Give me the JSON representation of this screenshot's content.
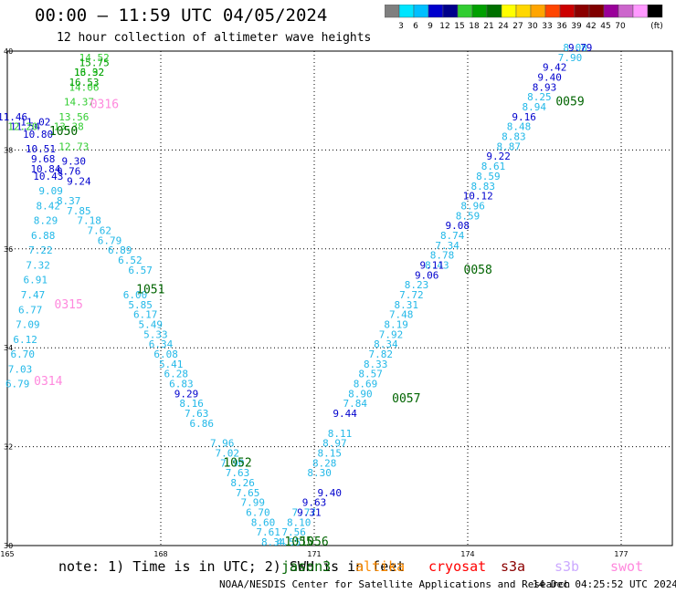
{
  "title": "00:00 – 11:59 UTC 04/05/2024",
  "subtitle": "12 hour collection of altimeter wave heights",
  "note": "note: 1) Time is in UTC; 2) SWH is in feet",
  "credit": "NOAA/NESDIS Center for Satellite Applications and Research",
  "timestamp": "14 Dec 04:25:52 UTC 2024",
  "colorbar": {
    "unit": "(ft)",
    "ticks": [
      "3",
      "6",
      "9",
      "12",
      "15",
      "18",
      "21",
      "24",
      "27",
      "30",
      "33",
      "36",
      "39",
      "42",
      "45",
      "70"
    ],
    "colors": [
      "#7f7f7f",
      "#00e5ff",
      "#00bfff",
      "#0000cd",
      "#00008b",
      "#32cd32",
      "#00a000",
      "#007000",
      "#ffff00",
      "#ffd700",
      "#ffa500",
      "#ff4500",
      "#cc0000",
      "#8b0000",
      "#800000",
      "#990099",
      "#cc66cc",
      "#ff99ff",
      "#000000"
    ]
  },
  "satellites": [
    {
      "name": "jason3",
      "color": "#006400"
    },
    {
      "name": "altika",
      "color": "#ff8c00"
    },
    {
      "name": "cryosat",
      "color": "#ff0000"
    },
    {
      "name": "s3a",
      "color": "#8b0000"
    },
    {
      "name": "s3b",
      "color": "#ccaaff"
    },
    {
      "name": "swot",
      "color": "#ff88dd"
    }
  ],
  "chart_data": {
    "type": "scatter",
    "xlim": [
      165,
      178
    ],
    "ylim": [
      30,
      40
    ],
    "xticks": [
      "165",
      "168",
      "171",
      "174",
      "177"
    ],
    "yticks": [
      "40",
      "38",
      "36",
      "34",
      "32",
      "30"
    ],
    "grid": true,
    "track_labels": [
      {
        "text": "0314",
        "lon": 165.8,
        "lat": 33.25,
        "color": "#ff88dd"
      },
      {
        "text": "0315",
        "lon": 166.2,
        "lat": 34.8,
        "color": "#ff88dd"
      },
      {
        "text": "0316",
        "lon": 166.9,
        "lat": 38.85,
        "color": "#ff88dd"
      },
      {
        "text": "1050",
        "lon": 166.1,
        "lat": 38.3,
        "color": "#006400"
      },
      {
        "text": "1051",
        "lon": 167.8,
        "lat": 35.1,
        "color": "#006400"
      },
      {
        "text": "1052",
        "lon": 169.5,
        "lat": 31.6,
        "color": "#006400"
      },
      {
        "text": "1055",
        "lon": 170.7,
        "lat": 30.0,
        "color": "#006400"
      },
      {
        "text": "1056",
        "lon": 171.0,
        "lat": 30.0,
        "color": "#006400"
      },
      {
        "text": "0057",
        "lon": 172.8,
        "lat": 32.9,
        "color": "#006400"
      },
      {
        "text": "0058",
        "lon": 174.2,
        "lat": 35.5,
        "color": "#006400"
      },
      {
        "text": "0059",
        "lon": 176.0,
        "lat": 38.9,
        "color": "#006400"
      }
    ],
    "series": [
      {
        "color": "#22b8e8",
        "points": [
          {
            "lon": 165.2,
            "lat": 33.2,
            "v": "6.79"
          },
          {
            "lon": 165.25,
            "lat": 33.5,
            "v": "7.03"
          },
          {
            "lon": 165.3,
            "lat": 33.8,
            "v": "6.70"
          },
          {
            "lon": 165.35,
            "lat": 34.1,
            "v": "6.12"
          },
          {
            "lon": 165.4,
            "lat": 34.4,
            "v": "7.09"
          },
          {
            "lon": 165.45,
            "lat": 34.7,
            "v": "6.77"
          },
          {
            "lon": 165.5,
            "lat": 35.0,
            "v": "7.47"
          },
          {
            "lon": 165.55,
            "lat": 35.3,
            "v": "6.91"
          },
          {
            "lon": 165.6,
            "lat": 35.6,
            "v": "7.32"
          },
          {
            "lon": 165.65,
            "lat": 35.9,
            "v": "7.22"
          },
          {
            "lon": 165.7,
            "lat": 36.2,
            "v": "6.88"
          },
          {
            "lon": 165.75,
            "lat": 36.5,
            "v": "8.29"
          },
          {
            "lon": 165.8,
            "lat": 36.8,
            "v": "8.42"
          },
          {
            "lon": 165.85,
            "lat": 37.1,
            "v": "9.09"
          }
        ]
      },
      {
        "color": "#22b8e8",
        "points": [
          {
            "lon": 166.2,
            "lat": 36.9,
            "v": "8.37"
          },
          {
            "lon": 166.4,
            "lat": 36.7,
            "v": "7.85"
          },
          {
            "lon": 166.6,
            "lat": 36.5,
            "v": "7.18"
          },
          {
            "lon": 166.8,
            "lat": 36.3,
            "v": "7.62"
          },
          {
            "lon": 167.0,
            "lat": 36.1,
            "v": "6.79"
          },
          {
            "lon": 167.2,
            "lat": 35.9,
            "v": "6.89"
          },
          {
            "lon": 167.4,
            "lat": 35.7,
            "v": "6.52"
          },
          {
            "lon": 167.6,
            "lat": 35.5,
            "v": "6.57"
          },
          {
            "lon": 167.5,
            "lat": 35.0,
            "v": "6.00"
          },
          {
            "lon": 167.6,
            "lat": 34.8,
            "v": "5.85"
          },
          {
            "lon": 167.7,
            "lat": 34.6,
            "v": "6.17"
          },
          {
            "lon": 167.8,
            "lat": 34.4,
            "v": "5.49"
          },
          {
            "lon": 167.9,
            "lat": 34.2,
            "v": "5.33"
          },
          {
            "lon": 168.0,
            "lat": 34.0,
            "v": "6.34"
          },
          {
            "lon": 168.1,
            "lat": 33.8,
            "v": "6.08"
          },
          {
            "lon": 168.2,
            "lat": 33.6,
            "v": "5.41"
          },
          {
            "lon": 168.3,
            "lat": 33.4,
            "v": "6.28"
          },
          {
            "lon": 168.4,
            "lat": 33.2,
            "v": "6.83"
          },
          {
            "lon": 168.6,
            "lat": 32.8,
            "v": "8.16"
          },
          {
            "lon": 168.7,
            "lat": 32.6,
            "v": "7.63"
          },
          {
            "lon": 168.8,
            "lat": 32.4,
            "v": "6.86"
          },
          {
            "lon": 169.2,
            "lat": 32.0,
            "v": "7.96"
          },
          {
            "lon": 169.3,
            "lat": 31.8,
            "v": "7.02"
          },
          {
            "lon": 169.4,
            "lat": 31.6,
            "v": "7.90"
          },
          {
            "lon": 169.5,
            "lat": 31.4,
            "v": "7.63"
          },
          {
            "lon": 169.6,
            "lat": 31.2,
            "v": "8.26"
          },
          {
            "lon": 169.7,
            "lat": 31.0,
            "v": "7.65"
          },
          {
            "lon": 169.8,
            "lat": 30.8,
            "v": "7.99"
          },
          {
            "lon": 169.9,
            "lat": 30.6,
            "v": "6.70"
          },
          {
            "lon": 170.0,
            "lat": 30.4,
            "v": "8.60"
          },
          {
            "lon": 170.1,
            "lat": 30.2,
            "v": "7.61"
          },
          {
            "lon": 170.2,
            "lat": 30.0,
            "v": "8.34"
          }
        ]
      },
      {
        "color": "#22b8e8",
        "points": [
          {
            "lon": 170.5,
            "lat": 30.0,
            "v": "4.55"
          },
          {
            "lon": 170.6,
            "lat": 30.2,
            "v": "7.56"
          },
          {
            "lon": 170.7,
            "lat": 30.4,
            "v": "8.10"
          },
          {
            "lon": 170.8,
            "lat": 30.6,
            "v": "7.77"
          },
          {
            "lon": 171.1,
            "lat": 31.4,
            "v": "8.30"
          },
          {
            "lon": 171.2,
            "lat": 31.6,
            "v": "8.28"
          },
          {
            "lon": 171.3,
            "lat": 31.8,
            "v": "8.15"
          },
          {
            "lon": 171.4,
            "lat": 32.0,
            "v": "8.97"
          },
          {
            "lon": 171.5,
            "lat": 32.2,
            "v": "8.11"
          },
          {
            "lon": 171.8,
            "lat": 32.8,
            "v": "7.84"
          },
          {
            "lon": 171.9,
            "lat": 33.0,
            "v": "8.90"
          },
          {
            "lon": 172.0,
            "lat": 33.2,
            "v": "8.69"
          },
          {
            "lon": 172.1,
            "lat": 33.4,
            "v": "8.57"
          },
          {
            "lon": 172.2,
            "lat": 33.6,
            "v": "8.33"
          },
          {
            "lon": 172.3,
            "lat": 33.8,
            "v": "7.82"
          },
          {
            "lon": 172.4,
            "lat": 34.0,
            "v": "8.34"
          },
          {
            "lon": 172.5,
            "lat": 34.2,
            "v": "7.92"
          },
          {
            "lon": 172.6,
            "lat": 34.4,
            "v": "8.19"
          },
          {
            "lon": 172.7,
            "lat": 34.6,
            "v": "7.48"
          },
          {
            "lon": 172.8,
            "lat": 34.8,
            "v": "8.31"
          },
          {
            "lon": 172.9,
            "lat": 35.0,
            "v": "7.72"
          },
          {
            "lon": 173.0,
            "lat": 35.2,
            "v": "8.23"
          },
          {
            "lon": 173.4,
            "lat": 35.6,
            "v": "8.43"
          },
          {
            "lon": 173.5,
            "lat": 35.8,
            "v": "8.78"
          },
          {
            "lon": 173.6,
            "lat": 36.0,
            "v": "7.34"
          },
          {
            "lon": 173.7,
            "lat": 36.2,
            "v": "8.74"
          },
          {
            "lon": 174.0,
            "lat": 36.6,
            "v": "8.59"
          },
          {
            "lon": 174.1,
            "lat": 36.8,
            "v": "8.96"
          },
          {
            "lon": 174.3,
            "lat": 37.2,
            "v": "8.83"
          },
          {
            "lon": 174.4,
            "lat": 37.4,
            "v": "8.59"
          },
          {
            "lon": 174.5,
            "lat": 37.6,
            "v": "8.61"
          },
          {
            "lon": 174.8,
            "lat": 38.0,
            "v": "8.87"
          },
          {
            "lon": 174.9,
            "lat": 38.2,
            "v": "8.83"
          },
          {
            "lon": 175.0,
            "lat": 38.4,
            "v": "8.48"
          },
          {
            "lon": 175.3,
            "lat": 38.8,
            "v": "8.94"
          },
          {
            "lon": 175.4,
            "lat": 39.0,
            "v": "8.25"
          },
          {
            "lon": 176.0,
            "lat": 39.8,
            "v": "7.90"
          },
          {
            "lon": 176.1,
            "lat": 40.0,
            "v": "8.08"
          }
        ]
      },
      {
        "color": "#0000cd",
        "points": [
          {
            "lon": 165.1,
            "lat": 38.6,
            "v": "11.46"
          },
          {
            "lon": 165.35,
            "lat": 38.4,
            "v": "11.54"
          },
          {
            "lon": 165.55,
            "lat": 38.5,
            "v": "11.02"
          },
          {
            "lon": 165.6,
            "lat": 38.25,
            "v": "10.80"
          },
          {
            "lon": 165.65,
            "lat": 37.95,
            "v": "10.51"
          },
          {
            "lon": 165.7,
            "lat": 37.75,
            "v": "9.68"
          },
          {
            "lon": 165.75,
            "lat": 37.55,
            "v": "10.84"
          },
          {
            "lon": 165.8,
            "lat": 37.4,
            "v": "10.43"
          },
          {
            "lon": 166.2,
            "lat": 37.5,
            "v": "9.76"
          },
          {
            "lon": 166.3,
            "lat": 37.7,
            "v": "9.30"
          },
          {
            "lon": 166.4,
            "lat": 37.3,
            "v": "9.24"
          },
          {
            "lon": 168.5,
            "lat": 33.0,
            "v": "9.29"
          },
          {
            "lon": 171.3,
            "lat": 31.0,
            "v": "9.40"
          },
          {
            "lon": 171.0,
            "lat": 30.8,
            "v": "9.63"
          },
          {
            "lon": 170.9,
            "lat": 30.6,
            "v": "9.31"
          },
          {
            "lon": 171.6,
            "lat": 32.6,
            "v": "9.44"
          },
          {
            "lon": 173.2,
            "lat": 35.4,
            "v": "9.06"
          },
          {
            "lon": 173.3,
            "lat": 35.6,
            "v": "9.11"
          },
          {
            "lon": 173.8,
            "lat": 36.4,
            "v": "9.08"
          },
          {
            "lon": 174.2,
            "lat": 37.0,
            "v": "10.12"
          },
          {
            "lon": 174.6,
            "lat": 37.8,
            "v": "9.22"
          },
          {
            "lon": 175.1,
            "lat": 38.6,
            "v": "9.16"
          },
          {
            "lon": 175.5,
            "lat": 39.2,
            "v": "8.93"
          },
          {
            "lon": 175.6,
            "lat": 39.4,
            "v": "9.40"
          },
          {
            "lon": 175.7,
            "lat": 39.6,
            "v": "9.42"
          },
          {
            "lon": 176.2,
            "lat": 40.0,
            "v": "9.79"
          }
        ]
      },
      {
        "color": "#32cd32",
        "points": [
          {
            "lon": 165.3,
            "lat": 38.4,
            "v": "12.20"
          },
          {
            "lon": 166.3,
            "lat": 38.0,
            "v": "12.73"
          },
          {
            "lon": 166.2,
            "lat": 38.4,
            "v": "13.38"
          },
          {
            "lon": 166.3,
            "lat": 38.6,
            "v": "13.56"
          },
          {
            "lon": 166.4,
            "lat": 38.9,
            "v": "14.37"
          },
          {
            "lon": 166.5,
            "lat": 39.2,
            "v": "14.06"
          },
          {
            "lon": 166.6,
            "lat": 39.5,
            "v": "13.92"
          },
          {
            "lon": 166.7,
            "lat": 39.8,
            "v": "14.52"
          }
        ]
      },
      {
        "color": "#00a000",
        "points": [
          {
            "lon": 166.7,
            "lat": 39.7,
            "v": "15.75"
          },
          {
            "lon": 166.6,
            "lat": 39.5,
            "v": "16.32"
          },
          {
            "lon": 166.5,
            "lat": 39.3,
            "v": "16.53"
          }
        ]
      }
    ]
  }
}
